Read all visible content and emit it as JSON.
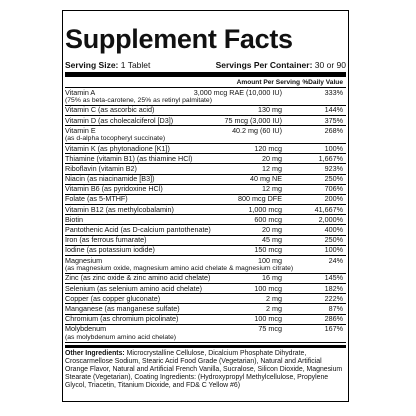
{
  "header": {
    "title": "Supplement Facts",
    "serving_size_label": "Serving Size:",
    "serving_size": "1 Tablet",
    "servings_label": "Servings Per Container:",
    "servings": "30 or 90"
  },
  "columns": {
    "amount": "Amount Per Serving",
    "dv": "%Daily Value"
  },
  "rows": [
    {
      "name": "Vitamin A",
      "sub": "(75% as beta-carotene, 25% as retinyl palmitate)",
      "amount": "3,000 mcg RAE (10,000 IU)",
      "dv": "333%"
    },
    {
      "name": "Vitamin C (as ascorbic acid)",
      "amount": "130 mg",
      "dv": "144%"
    },
    {
      "name": "Vitamin D (as cholecalciferol [D3])",
      "amount": "75 mcg (3,000 IU)",
      "dv": "375%"
    },
    {
      "name": "Vitamin E",
      "sub": "(as d-alpha tocopheryl succinate)",
      "amount": "40.2 mg (60 IU)",
      "dv": "268%"
    },
    {
      "name": "Vitamin K (as phytonadione [K1])",
      "amount": "120 mcg",
      "dv": "100%"
    },
    {
      "name": "Thiamine (vitamin B1) (as thiamine HCl)",
      "amount": "20 mg",
      "dv": "1,667%"
    },
    {
      "name": "Riboflavin (vitamin B2)",
      "amount": "12 mg",
      "dv": "923%"
    },
    {
      "name": "Niacin (as niacinamide [B3])",
      "amount": "40 mg NE",
      "dv": "250%"
    },
    {
      "name": "Vitamin B6 (as pyridoxine HCl)",
      "amount": "12 mg",
      "dv": "706%"
    },
    {
      "name": "Folate (as 5-MTHF)",
      "amount": "800 mcg DFE",
      "dv": "200%"
    },
    {
      "name": "Vitamin B12 (as methylcobalamin)",
      "amount": "1,000 mcg",
      "dv": "41,667%"
    },
    {
      "name": "Biotin",
      "amount": "600 mcg",
      "dv": "2,000%"
    },
    {
      "name": "Pantothenic Acid (as D-calcium pantothenate)",
      "amount": "20 mg",
      "dv": "400%"
    },
    {
      "name": "Iron (as ferrous fumarate)",
      "amount": "45 mg",
      "dv": "250%"
    },
    {
      "name": "Iodine (as potassium iodide)",
      "amount": "150 mcg",
      "dv": "100%"
    },
    {
      "name": "Magnesium",
      "sub": "(as magnesium oxide, magnesium amino acid chelate & magnesium citrate)",
      "amount": "100 mg",
      "dv": "24%"
    },
    {
      "name": "Zinc (as zinc oxide & zinc amino acid chelate)",
      "amount": "16 mg",
      "dv": "145%"
    },
    {
      "name": "Selenium (as selenium amino acid chelate)",
      "amount": "100 mcg",
      "dv": "182%"
    },
    {
      "name": "Copper (as copper gluconate)",
      "amount": "2 mg",
      "dv": "222%"
    },
    {
      "name": "Manganese (as manganese sulfate)",
      "amount": "2 mg",
      "dv": "87%"
    },
    {
      "name": "Chromium (as chromium picolinate)",
      "amount": "100 mcg",
      "dv": "286%"
    },
    {
      "name": "Molybdenum",
      "sub": "(as molybdenum amino acid chelate)",
      "amount": "75 mcg",
      "dv": "167%"
    }
  ],
  "other_ingredients": {
    "label": "Other Ingredients:",
    "text": "Microcrystalline Cellulose, Dicalcium Phosphate Dihydrate, Croscarmellose Sodium, Stearic Acid Food Grade (Vegetarian), Natural and Artificial Orange Flavor, Natural and Artificial French Vanilla, Sucralose, Silicon Dioxide, Magnesium Stearate (Vegetarian), Coating Ingredients: (Hydroxypropyl Methylcellulose, Propylene Glycol, Triacetin, Titanium Dioxide, and FD& C Yellow #6)"
  }
}
